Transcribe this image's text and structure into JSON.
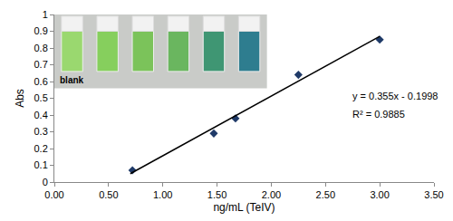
{
  "chart_data": {
    "type": "scatter",
    "x_label": "ng/mL (TeIV)",
    "y_label": "Abs",
    "xlim": [
      0,
      3.5
    ],
    "ylim": [
      0,
      1
    ],
    "xticks": [
      {
        "value": 0,
        "label": "0.00"
      },
      {
        "value": 0.5,
        "label": "0.50"
      },
      {
        "value": 1,
        "label": "1.00"
      },
      {
        "value": 1.5,
        "label": "1.50"
      },
      {
        "value": 2,
        "label": "2.00"
      },
      {
        "value": 2.5,
        "label": "2.50"
      },
      {
        "value": 3,
        "label": "3.00"
      },
      {
        "value": 3.5,
        "label": "3.50"
      }
    ],
    "yticks": [
      0,
      0.1,
      0.2,
      0.3,
      0.4,
      0.5,
      0.6,
      0.7,
      0.8,
      0.9,
      1
    ],
    "grid": false,
    "series": [
      {
        "type": "scatter",
        "marker": "diamond",
        "color": "#1f3a68",
        "x": [
          0.72,
          1.47,
          1.67,
          2.25,
          3.0
        ],
        "values": [
          0.07,
          0.29,
          0.38,
          0.64,
          0.85
        ]
      },
      {
        "type": "line",
        "line_style": "solid",
        "color": "#000000",
        "x": [
          0.7,
          3.0
        ],
        "values": [
          0.05,
          0.87
        ]
      }
    ],
    "annotations": [
      "y = 0.355x - 0.1998",
      "R² = 0.9885"
    ],
    "inset_label": "blank"
  }
}
